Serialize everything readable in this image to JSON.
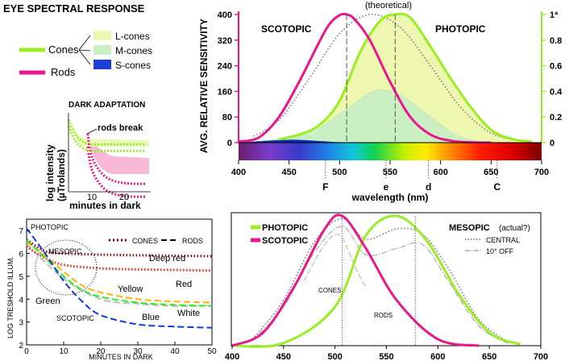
{
  "title": "EYE SPECTRAL RESPONSE",
  "colors": {
    "photopic": "#99ee22",
    "scotopic": "#e8188c",
    "lcone": "#eef7b0",
    "mcone": "#c9efc2",
    "scone": "#0b2db5",
    "grid": "#888888"
  },
  "legend": {
    "cones": "Cones",
    "rods": "Rods",
    "items": [
      {
        "label": "L-cones",
        "color": "#eef7b0"
      },
      {
        "label": "M-cones",
        "color": "#c9efc2"
      },
      {
        "label": "S-cones",
        "color": "#1f3fd0"
      }
    ]
  },
  "dark_adapt": {
    "title": "DARK ADAPTATION",
    "ylabel": "log intensity",
    "yunit": "(µTrolands)",
    "xlabel": "minutes in dark",
    "note": "rods break",
    "xticks": [
      "10",
      "20"
    ]
  },
  "main": {
    "top_note": "(theoretical)",
    "scotopic": "SCOTOPIC",
    "photopic": "PHOTOPIC",
    "ylabel": "AVG. RELATIVE SENSITIVITY",
    "yticks_left": [
      "400",
      "320",
      "240",
      "160",
      "80",
      "0"
    ],
    "yticks_right": [
      "1ª",
      "0.8",
      "0.6",
      "0.4",
      "0.2",
      "0"
    ],
    "xticks": [
      "400",
      "450",
      "500",
      "550",
      "600",
      "650",
      "700"
    ],
    "xlabel": "wavelength (nm)",
    "markers": [
      {
        "label": "F",
        "x": 486
      },
      {
        "label": "e",
        "x": 546
      },
      {
        "label": "d",
        "x": 588
      },
      {
        "label": "C",
        "x": 656
      }
    ]
  },
  "threshold": {
    "ylabel": "LOG TRESHOLD ILLUM.",
    "xlabel": "MINUTES IN DARK",
    "photopic": "PHOTOPIC",
    "mesopic": "MESOPIC",
    "scotopic": "SCOTOPIC",
    "legend_cones": "CONES",
    "legend_rods": "RODS",
    "curve_labels": {
      "deep_red": "Deep red",
      "red": "Red",
      "yellow": "Yellow",
      "green": "Green",
      "white": "White",
      "blue": "Blue"
    },
    "yticks": [
      "7",
      "6",
      "5",
      "4",
      "3",
      "2"
    ],
    "xticks": [
      "0",
      "10",
      "20",
      "30",
      "40",
      "50"
    ]
  },
  "mesopic_chart": {
    "photopic": "PHOTOPIC",
    "scotopic": "SCOTOPIC",
    "mesopic": "MESOPIC",
    "mesopic_note": "(actual?)",
    "central": "CENTRAL",
    "off": "10° OFF",
    "cones": "CONES",
    "rods": "RODS",
    "xticks": [
      "400",
      "450",
      "500",
      "550",
      "600",
      "650",
      "700"
    ]
  },
  "chart_data": [
    {
      "type": "line",
      "title": "",
      "xlabel": "wavelength (nm)",
      "ylabel": "AVG. RELATIVE SENSITIVITY",
      "xlim": [
        400,
        700
      ],
      "ylim": [
        0,
        400
      ],
      "ylim_right": [
        0,
        1
      ],
      "series": [
        {
          "name": "SCOTOPIC",
          "x": [
            400,
            420,
            440,
            460,
            480,
            490,
            500,
            507,
            515,
            530,
            550,
            570,
            590,
            610,
            630,
            650
          ],
          "y": [
            3,
            16,
            80,
            190,
            315,
            370,
            398,
            400,
            385,
            320,
            190,
            80,
            25,
            6,
            1,
            0
          ]
        },
        {
          "name": "PHOTOPIC",
          "x": [
            440,
            460,
            480,
            500,
            520,
            540,
            555,
            570,
            590,
            610,
            630,
            650,
            670,
            690
          ],
          "y": [
            10,
            25,
            55,
            130,
            280,
            380,
            400,
            390,
            300,
            200,
            110,
            40,
            12,
            3
          ]
        }
      ]
    },
    {
      "type": "line",
      "title": "DARK ADAPTATION",
      "xlabel": "minutes in dark",
      "ylabel": "log intensity (µTrolands)",
      "xlim": [
        0,
        30
      ],
      "series": [
        {
          "x": [
            0,
            2,
            4,
            6,
            8,
            10,
            14,
            20,
            28
          ],
          "y": [
            7.6,
            6.9,
            6.5,
            6.3,
            6.2,
            6.2,
            6.2,
            6.2,
            6.2
          ]
        },
        {
          "x": [
            7,
            8,
            10,
            14,
            20,
            28
          ],
          "y": [
            6.8,
            5.8,
            5.0,
            4.3,
            4.0,
            3.95
          ]
        }
      ]
    },
    {
      "type": "line",
      "title": "",
      "xlabel": "MINUTES IN DARK",
      "ylabel": "LOG TRESHOLD ILLUM.",
      "xlim": [
        0,
        50
      ],
      "ylim": [
        2,
        7.5
      ],
      "series": [
        {
          "name": "Deep red",
          "x": [
            0,
            5,
            10,
            20,
            30,
            40,
            50
          ],
          "y": [
            6.6,
            6.1,
            6.0,
            5.95,
            5.92,
            5.9,
            5.88
          ]
        },
        {
          "name": "Red",
          "x": [
            0,
            5,
            10,
            20,
            30,
            40,
            50
          ],
          "y": [
            6.3,
            5.8,
            5.5,
            5.35,
            5.3,
            5.28,
            5.25
          ]
        },
        {
          "name": "Yellow",
          "x": [
            0,
            5,
            10,
            15,
            20,
            30,
            40,
            50
          ],
          "y": [
            6.5,
            5.9,
            5.2,
            4.6,
            4.3,
            4.0,
            3.9,
            3.85
          ]
        },
        {
          "name": "Green",
          "x": [
            0,
            5,
            10,
            15,
            20,
            30,
            40,
            50
          ],
          "y": [
            6.6,
            5.8,
            5.0,
            4.4,
            4.1,
            3.85,
            3.75,
            3.7
          ]
        },
        {
          "name": "Blue",
          "x": [
            0,
            5,
            10,
            15,
            20,
            30,
            40,
            50
          ],
          "y": [
            7.1,
            6.0,
            4.8,
            3.9,
            3.3,
            2.9,
            2.8,
            2.75
          ]
        }
      ]
    },
    {
      "type": "line",
      "title": "",
      "xlim": [
        400,
        700
      ],
      "series": [
        {
          "name": "PHOTOPIC",
          "x": [
            400,
            450,
            500,
            530,
            560,
            590,
            620,
            650,
            680
          ],
          "y": [
            0,
            0.02,
            0.3,
            0.85,
            1.0,
            0.8,
            0.4,
            0.1,
            0.01
          ]
        },
        {
          "name": "SCOTOPIC",
          "x": [
            400,
            430,
            460,
            490,
            507,
            530,
            560,
            600,
            640
          ],
          "y": [
            0,
            0.1,
            0.45,
            0.9,
            1.0,
            0.75,
            0.35,
            0.05,
            0.0
          ]
        }
      ]
    }
  ]
}
